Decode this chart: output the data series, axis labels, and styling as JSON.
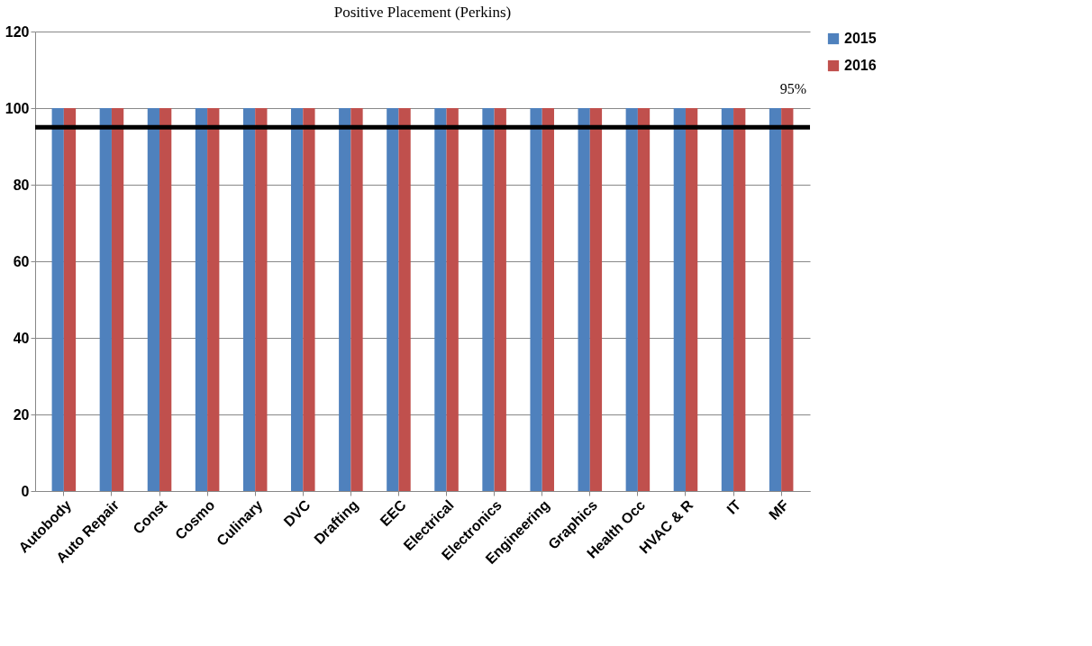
{
  "chart_data": {
    "type": "bar",
    "title": "Positive Placement (Perkins)",
    "categories": [
      "Autobody",
      "Auto Repair",
      "Const",
      "Cosmo",
      "Culinary",
      "DVC",
      "Drafting",
      "EEC",
      "Electrical",
      "Electronics",
      "Engineering",
      "Graphics",
      "Health Occ",
      "HVAC & R",
      "IT",
      "MF"
    ],
    "series": [
      {
        "name": "2015",
        "color": "#4f81bd",
        "values": [
          100,
          100,
          100,
          100,
          100,
          100,
          100,
          100,
          100,
          100,
          100,
          100,
          100,
          100,
          100,
          100
        ]
      },
      {
        "name": "2016",
        "color": "#c0504d",
        "values": [
          100,
          100,
          100,
          100,
          100,
          100,
          100,
          100,
          100,
          100,
          100,
          100,
          100,
          100,
          100,
          100
        ]
      }
    ],
    "ylim": [
      0,
      120
    ],
    "yticks": [
      0,
      20,
      40,
      60,
      80,
      100,
      120
    ],
    "grid": "y",
    "legend": "right",
    "ref_lines": [
      {
        "axis": "y",
        "value": 95,
        "label": "95%",
        "color": "#000000"
      }
    ]
  }
}
